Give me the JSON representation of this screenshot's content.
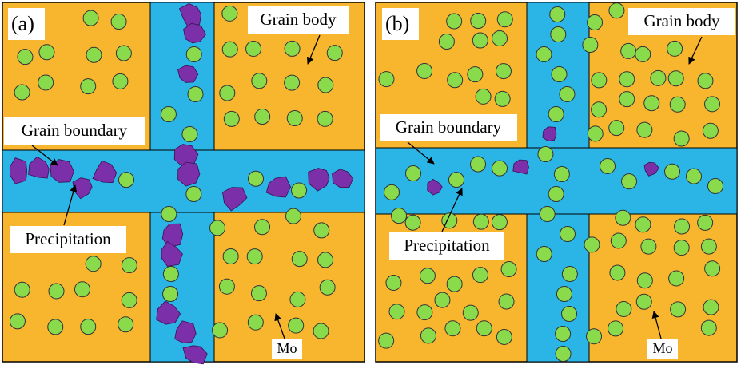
{
  "panels": [
    {
      "label": "(a)",
      "grain_body": "Grain body",
      "grain_boundary": "Grain boundary",
      "precipitation": "Precipitation",
      "mo": "Mo"
    },
    {
      "label": "(b)",
      "grain_body": "Grain body",
      "grain_boundary": "Grain boundary",
      "precipitation": "Precipitation",
      "mo": "Mo"
    }
  ]
}
